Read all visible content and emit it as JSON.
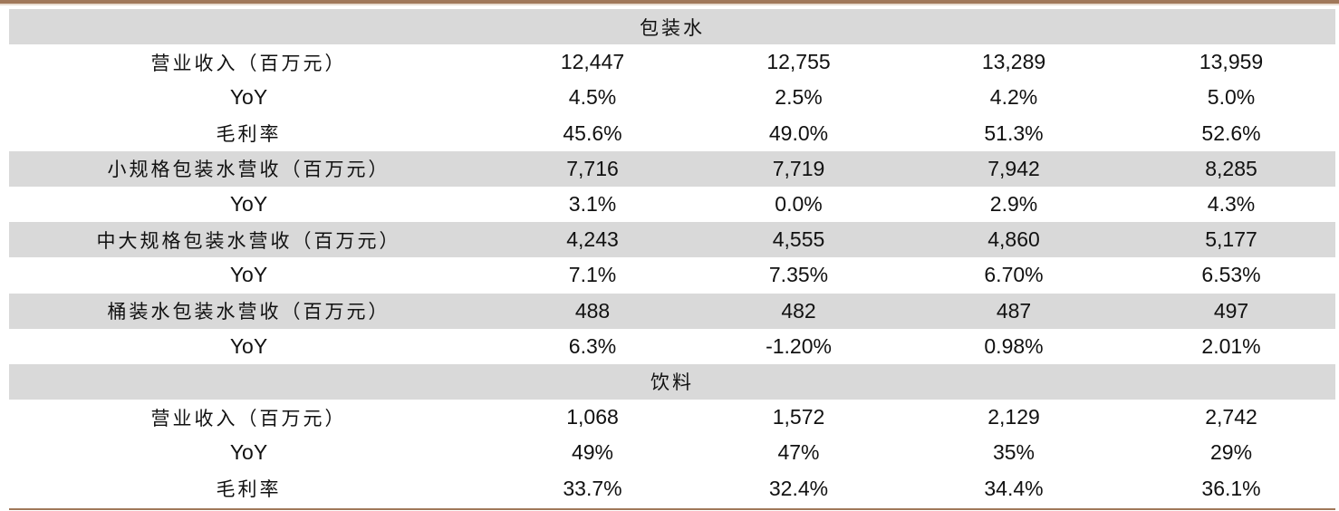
{
  "sections": [
    {
      "title": "包装水",
      "rows": [
        {
          "label": "营业收入（百万元）",
          "values": [
            "12,447",
            "12,755",
            "13,289",
            "13,959"
          ]
        },
        {
          "label": "YoY",
          "values": [
            "4.5%",
            "2.5%",
            "4.2%",
            "5.0%"
          ]
        },
        {
          "label": "毛利率",
          "values": [
            "45.6%",
            "49.0%",
            "51.3%",
            "52.6%"
          ]
        },
        {
          "label": "小规格包装水营收（百万元）",
          "values": [
            "7,716",
            "7,719",
            "7,942",
            "8,285"
          ]
        },
        {
          "label": "YoY",
          "values": [
            "3.1%",
            "0.0%",
            "2.9%",
            "4.3%"
          ]
        },
        {
          "label": "中大规格包装水营收（百万元）",
          "values": [
            "4,243",
            "4,555",
            "4,860",
            "5,177"
          ]
        },
        {
          "label": "YoY",
          "values": [
            "7.1%",
            "7.35%",
            "6.70%",
            "6.53%"
          ]
        },
        {
          "label": "桶装水包装水营收（百万元）",
          "values": [
            "488",
            "482",
            "487",
            "497"
          ]
        },
        {
          "label": "YoY",
          "values": [
            "6.3%",
            "-1.20%",
            "0.98%",
            "2.01%"
          ]
        }
      ]
    },
    {
      "title": "饮料",
      "rows": [
        {
          "label": "营业收入（百万元）",
          "values": [
            "1,068",
            "1,572",
            "2,129",
            "2,742"
          ]
        },
        {
          "label": "YoY",
          "values": [
            "49%",
            "47%",
            "35%",
            "29%"
          ]
        },
        {
          "label": "毛利率",
          "values": [
            "33.7%",
            "32.4%",
            "34.4%",
            "36.1%"
          ]
        }
      ]
    }
  ],
  "colors": {
    "rule": "#a0785a",
    "shade": "#d9d9d9",
    "text": "#111111"
  }
}
